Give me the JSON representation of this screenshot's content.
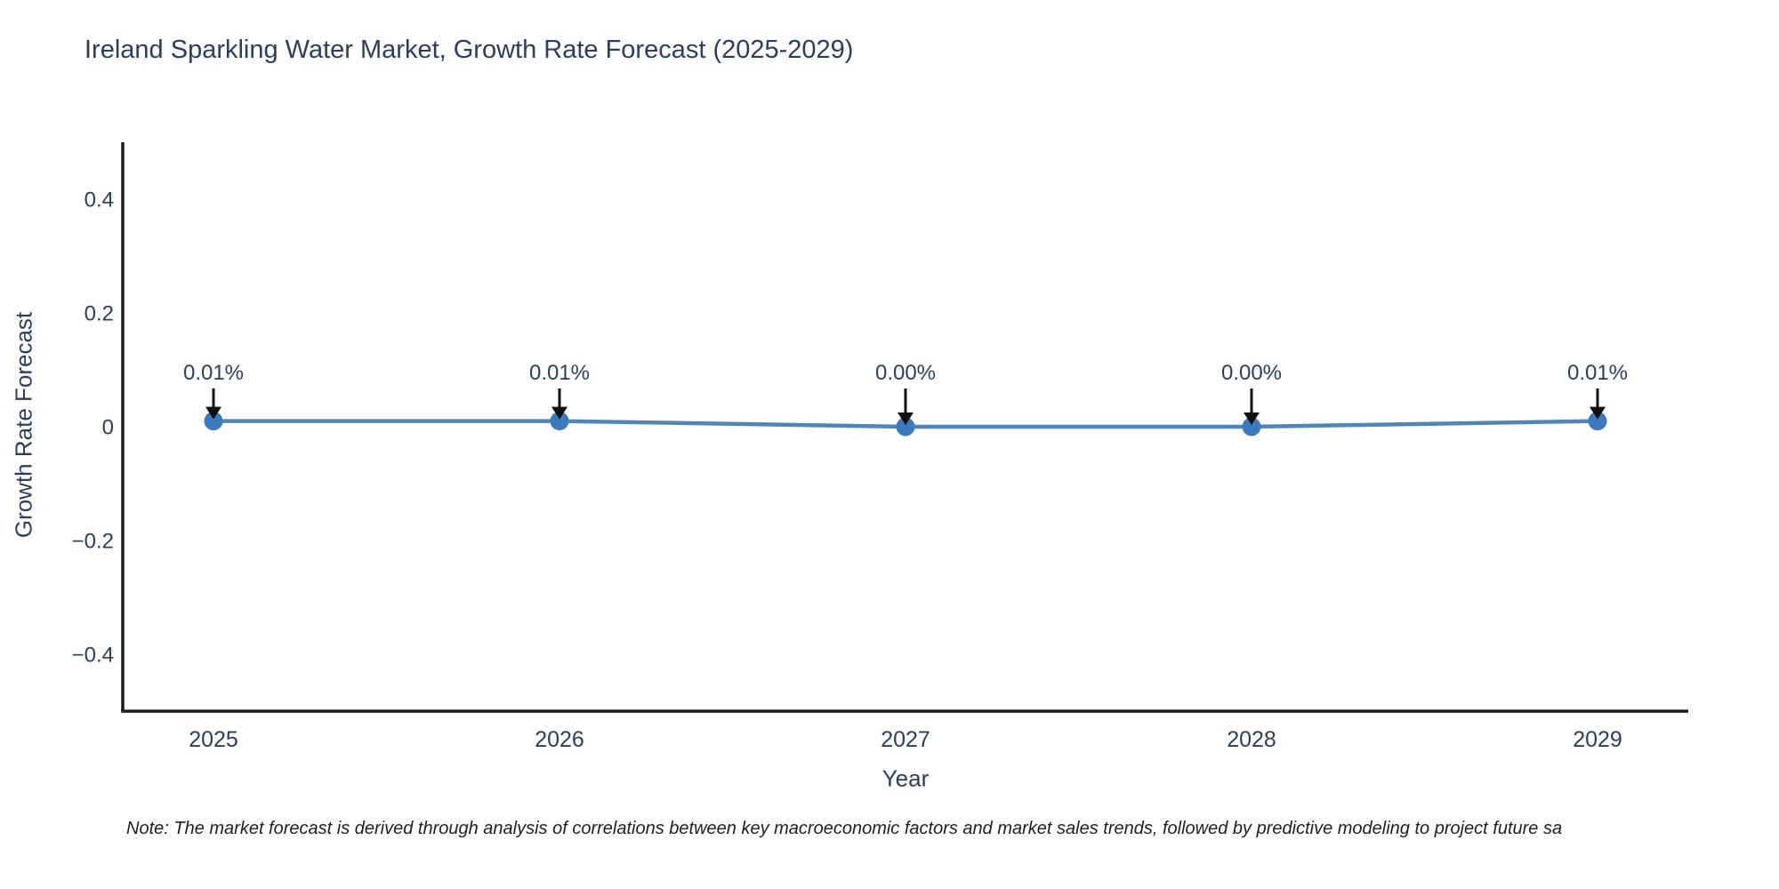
{
  "chart_data": {
    "type": "line",
    "title": "Ireland Sparkling Water Market, Growth Rate Forecast (2025-2029)",
    "xlabel": "Year",
    "ylabel": "Growth Rate Forecast",
    "x": [
      2025,
      2026,
      2027,
      2028,
      2029
    ],
    "xtick_labels": [
      "2025",
      "2026",
      "2027",
      "2028",
      "2029"
    ],
    "series": [
      {
        "name": "Growth Rate Forecast",
        "values": [
          0.01,
          0.01,
          0.0,
          0.0,
          0.01
        ],
        "point_labels": [
          "0.01%",
          "0.01%",
          "0.00%",
          "0.00%",
          "0.01%"
        ]
      }
    ],
    "ylim": [
      -0.5,
      0.5
    ],
    "yticks": [
      0.4,
      0.2,
      0,
      -0.2,
      -0.4
    ],
    "ytick_labels": [
      "0.4",
      "0.2",
      "0",
      "−0.2",
      "−0.4"
    ],
    "grid": false,
    "legend": "none",
    "colors": {
      "line": "#4f86b8",
      "marker": "#3a7abd",
      "axis": "#1c1c1c",
      "text": "#2a3f5f",
      "arrow": "#111111"
    }
  },
  "note": {
    "text": "Note: The market forecast is derived through analysis of correlations between key macroeconomic factors and market sales trends, followed by predictive modeling to project future sa"
  }
}
